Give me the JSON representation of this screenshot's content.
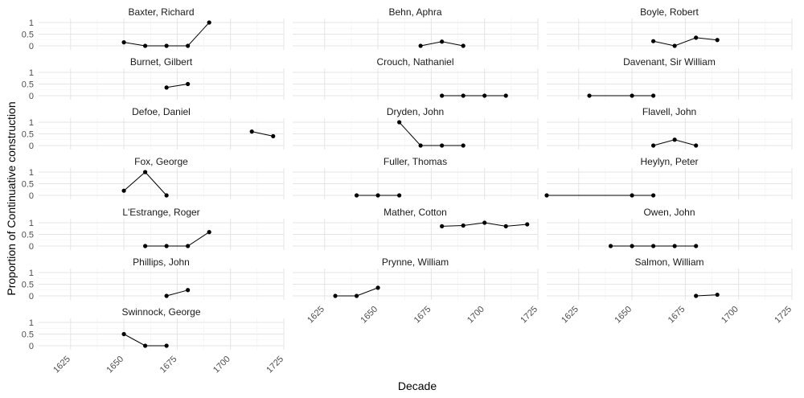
{
  "chart_data": {
    "type": "line",
    "xlabel": "Decade",
    "ylabel": "Proportion of Continuative construction",
    "xlim": [
      1610,
      1725
    ],
    "ylim": [
      0,
      1
    ],
    "x_ticks": [
      "1625",
      "1650",
      "1675",
      "1700",
      "1725"
    ],
    "y_ticks": [
      "0",
      "0.5",
      "1"
    ],
    "grid": true,
    "panels": [
      {
        "name": "Baxter, Richard",
        "points": [
          [
            1650,
            0.15
          ],
          [
            1660,
            0.0
          ],
          [
            1670,
            0.0
          ],
          [
            1680,
            0.0
          ],
          [
            1690,
            1.0
          ]
        ]
      },
      {
        "name": "Behn, Aphra",
        "points": [
          [
            1670,
            0.0
          ],
          [
            1680,
            0.18
          ],
          [
            1690,
            0.0
          ]
        ]
      },
      {
        "name": "Boyle, Robert",
        "points": [
          [
            1660,
            0.2
          ],
          [
            1670,
            0.0
          ],
          [
            1680,
            0.35
          ],
          [
            1690,
            0.25
          ]
        ]
      },
      {
        "name": "Burnet, Gilbert",
        "points": [
          [
            1670,
            0.35
          ],
          [
            1680,
            0.5
          ]
        ]
      },
      {
        "name": "Crouch, Nathaniel",
        "points": [
          [
            1680,
            0.0
          ],
          [
            1690,
            0.0
          ],
          [
            1700,
            0.0
          ],
          [
            1710,
            0.0
          ]
        ]
      },
      {
        "name": "Davenant, Sir William",
        "points": [
          [
            1630,
            0.0
          ],
          [
            1650,
            0.0
          ],
          [
            1660,
            0.0
          ]
        ]
      },
      {
        "name": "Defoe, Daniel",
        "points": [
          [
            1710,
            0.6
          ],
          [
            1720,
            0.4
          ]
        ]
      },
      {
        "name": "Dryden, John",
        "points": [
          [
            1660,
            1.0
          ],
          [
            1670,
            0.0
          ],
          [
            1680,
            0.0
          ],
          [
            1690,
            0.0
          ]
        ]
      },
      {
        "name": "Flavell, John",
        "points": [
          [
            1660,
            0.0
          ],
          [
            1670,
            0.25
          ],
          [
            1680,
            0.0
          ]
        ]
      },
      {
        "name": "Fox, George",
        "points": [
          [
            1650,
            0.2
          ],
          [
            1660,
            1.0
          ],
          [
            1670,
            0.0
          ]
        ]
      },
      {
        "name": "Fuller, Thomas",
        "points": [
          [
            1640,
            0.0
          ],
          [
            1650,
            0.0
          ],
          [
            1660,
            0.0
          ]
        ]
      },
      {
        "name": "Heylyn, Peter",
        "points": [
          [
            1610,
            0.0
          ],
          [
            1650,
            0.0
          ],
          [
            1660,
            0.0
          ]
        ]
      },
      {
        "name": "L'Estrange, Roger",
        "points": [
          [
            1660,
            0.0
          ],
          [
            1670,
            0.0
          ],
          [
            1680,
            0.0
          ],
          [
            1690,
            0.6
          ]
        ]
      },
      {
        "name": "Mather, Cotton",
        "points": [
          [
            1680,
            0.85
          ],
          [
            1690,
            0.88
          ],
          [
            1700,
            1.0
          ],
          [
            1710,
            0.85
          ],
          [
            1720,
            0.93
          ]
        ]
      },
      {
        "name": "Owen, John",
        "points": [
          [
            1640,
            0.0
          ],
          [
            1650,
            0.0
          ],
          [
            1660,
            0.0
          ],
          [
            1670,
            0.0
          ],
          [
            1680,
            0.0
          ]
        ]
      },
      {
        "name": "Phillips, John",
        "points": [
          [
            1670,
            0.0
          ],
          [
            1680,
            0.25
          ]
        ]
      },
      {
        "name": "Prynne, William",
        "points": [
          [
            1630,
            0.0
          ],
          [
            1640,
            0.0
          ],
          [
            1650,
            0.35
          ]
        ]
      },
      {
        "name": "Salmon, William",
        "points": [
          [
            1680,
            0.0
          ],
          [
            1690,
            0.05
          ]
        ]
      },
      {
        "name": "Swinnock, George",
        "points": [
          [
            1650,
            0.5
          ],
          [
            1660,
            0.0
          ],
          [
            1670,
            0.0
          ]
        ]
      }
    ]
  }
}
